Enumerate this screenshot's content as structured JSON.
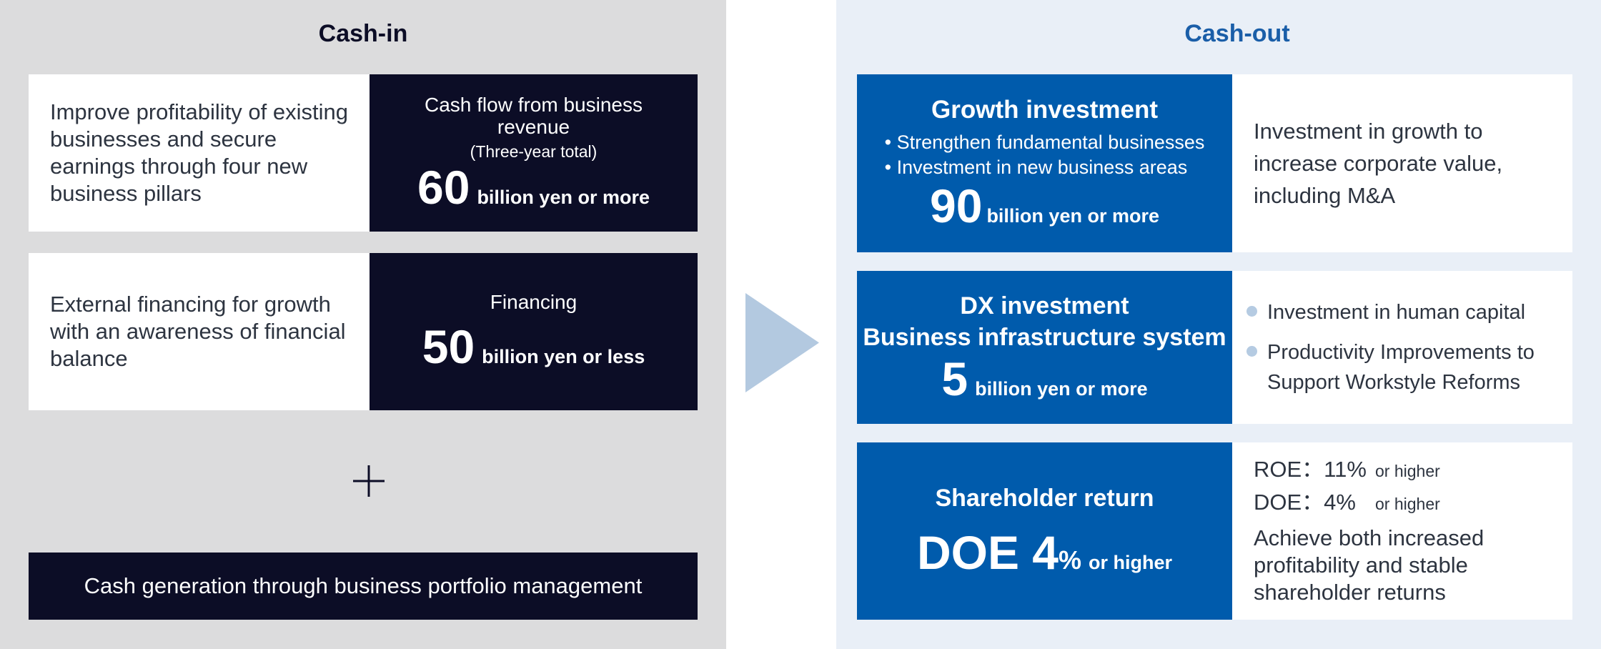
{
  "cash_in": {
    "title": "Cash-in",
    "items": [
      {
        "description": "Improve profitability of existing businesses and secure earnings through four new business pillars",
        "label": "Cash flow from business revenue",
        "note": "(Three-year total)",
        "amount": "60",
        "unit": "billion yen or more"
      },
      {
        "description": "External financing for growth with an awareness of financial balance",
        "label": "Financing",
        "amount": "50",
        "unit": "billion yen or less"
      }
    ],
    "footer": "Cash generation through business portfolio management"
  },
  "cash_out": {
    "title": "Cash-out",
    "growth": {
      "title": "Growth investment",
      "bullets": [
        "• Strengthen fundamental businesses",
        "• Investment in new business areas"
      ],
      "amount": "90",
      "unit": "billion yen or more",
      "description": "Investment in growth to increase corporate value, including M&A"
    },
    "dx": {
      "title": [
        "DX investment",
        "Business infrastructure system"
      ],
      "amount": "5",
      "unit": "billion yen or more",
      "details": [
        "Investment in human capital",
        "Productivity Improvements to Support Workstyle Reforms"
      ]
    },
    "shareholder": {
      "title": "Shareholder return",
      "amount": "DOE 4",
      "symbol": "%",
      "unit": "or higher",
      "targets": [
        {
          "label": "ROE：11%",
          "qualifier": "or higher"
        },
        {
          "label": "DOE：4%",
          "qualifier": "or higher"
        }
      ],
      "summary": "Achieve both increased profitability and stable shareholder returns"
    }
  }
}
